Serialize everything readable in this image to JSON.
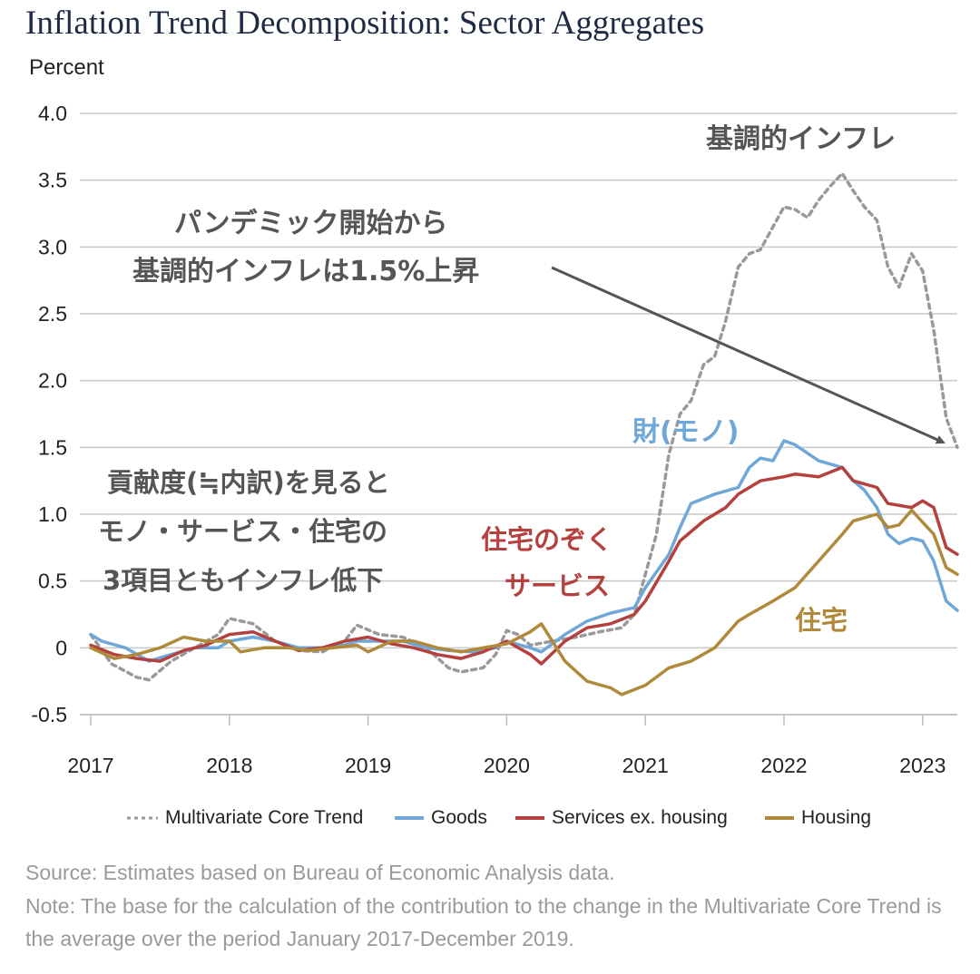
{
  "header": {
    "title": "Inflation Trend Decomposition: Sector Aggregates",
    "ylabel": "Percent"
  },
  "footer": {
    "source": "Source: Estimates based on Bureau of Economic Analysis data.",
    "note": "Note: The base for the calculation of the contribution to the change in the Multivariate Core Trend is the average over the period January 2017-December 2019."
  },
  "chart_data": {
    "type": "line",
    "title": "Inflation Trend Decomposition: Sector Aggregates",
    "ylabel": "Percent",
    "xlabel": "",
    "ylim": [
      -0.5,
      4.0
    ],
    "yticks": [
      "4.0",
      "3.5",
      "3.0",
      "2.5",
      "2.0",
      "1.5",
      "1.0",
      "0.5",
      "0",
      "-0.5"
    ],
    "ytick_values": [
      4.0,
      3.5,
      3.0,
      2.5,
      2.0,
      1.5,
      1.0,
      0.5,
      0,
      -0.5
    ],
    "xlim": [
      2017.0,
      2023.25
    ],
    "xticks": [
      "2017",
      "2018",
      "2019",
      "2020",
      "2021",
      "2022",
      "2023"
    ],
    "xtick_values": [
      2017,
      2018,
      2019,
      2020,
      2021,
      2022,
      2023
    ],
    "grid": "horizontal",
    "legend_position": "bottom",
    "series": [
      {
        "name": "Multivariate Core Trend",
        "color": "#999999",
        "style": "dashed",
        "points": [
          [
            2017.0,
            0.1
          ],
          [
            2017.15,
            -0.12
          ],
          [
            2017.33,
            -0.22
          ],
          [
            2017.42,
            -0.24
          ],
          [
            2017.58,
            -0.1
          ],
          [
            2017.75,
            0.0
          ],
          [
            2017.92,
            0.1
          ],
          [
            2018.0,
            0.22
          ],
          [
            2018.17,
            0.18
          ],
          [
            2018.33,
            0.05
          ],
          [
            2018.5,
            -0.02
          ],
          [
            2018.67,
            -0.03
          ],
          [
            2018.83,
            0.05
          ],
          [
            2018.92,
            0.17
          ],
          [
            2019.08,
            0.1
          ],
          [
            2019.25,
            0.08
          ],
          [
            2019.42,
            0.0
          ],
          [
            2019.58,
            -0.15
          ],
          [
            2019.67,
            -0.18
          ],
          [
            2019.83,
            -0.15
          ],
          [
            2019.92,
            -0.05
          ],
          [
            2020.0,
            0.13
          ],
          [
            2020.08,
            0.1
          ],
          [
            2020.17,
            0.02
          ],
          [
            2020.33,
            0.05
          ],
          [
            2020.5,
            0.08
          ],
          [
            2020.67,
            0.12
          ],
          [
            2020.83,
            0.15
          ],
          [
            2020.92,
            0.25
          ],
          [
            2021.0,
            0.55
          ],
          [
            2021.08,
            0.85
          ],
          [
            2021.17,
            1.45
          ],
          [
            2021.25,
            1.75
          ],
          [
            2021.33,
            1.85
          ],
          [
            2021.42,
            2.12
          ],
          [
            2021.5,
            2.18
          ],
          [
            2021.58,
            2.45
          ],
          [
            2021.67,
            2.85
          ],
          [
            2021.75,
            2.95
          ],
          [
            2021.83,
            2.98
          ],
          [
            2021.92,
            3.15
          ],
          [
            2022.0,
            3.3
          ],
          [
            2022.08,
            3.28
          ],
          [
            2022.17,
            3.22
          ],
          [
            2022.25,
            3.35
          ],
          [
            2022.33,
            3.45
          ],
          [
            2022.42,
            3.55
          ],
          [
            2022.5,
            3.42
          ],
          [
            2022.58,
            3.3
          ],
          [
            2022.67,
            3.2
          ],
          [
            2022.75,
            2.85
          ],
          [
            2022.83,
            2.7
          ],
          [
            2022.92,
            2.95
          ],
          [
            2023.0,
            2.82
          ],
          [
            2023.08,
            2.38
          ],
          [
            2023.17,
            1.72
          ],
          [
            2023.25,
            1.5
          ]
        ]
      },
      {
        "name": "Goods",
        "color": "#6fa8d8",
        "style": "solid",
        "points": [
          [
            2017.0,
            0.1
          ],
          [
            2017.08,
            0.05
          ],
          [
            2017.25,
            0.0
          ],
          [
            2017.42,
            -0.1
          ],
          [
            2017.58,
            -0.05
          ],
          [
            2017.75,
            0.0
          ],
          [
            2017.92,
            0.0
          ],
          [
            2018.0,
            0.05
          ],
          [
            2018.17,
            0.08
          ],
          [
            2018.33,
            0.05
          ],
          [
            2018.5,
            0.0
          ],
          [
            2018.67,
            0.0
          ],
          [
            2018.83,
            0.02
          ],
          [
            2018.92,
            0.05
          ],
          [
            2019.08,
            0.05
          ],
          [
            2019.25,
            0.05
          ],
          [
            2019.42,
            0.0
          ],
          [
            2019.58,
            -0.02
          ],
          [
            2019.75,
            -0.03
          ],
          [
            2019.92,
            0.0
          ],
          [
            2020.0,
            0.05
          ],
          [
            2020.17,
            0.0
          ],
          [
            2020.25,
            -0.03
          ],
          [
            2020.42,
            0.1
          ],
          [
            2020.58,
            0.2
          ],
          [
            2020.75,
            0.26
          ],
          [
            2020.92,
            0.3
          ],
          [
            2021.0,
            0.45
          ],
          [
            2021.17,
            0.7
          ],
          [
            2021.25,
            0.9
          ],
          [
            2021.33,
            1.08
          ],
          [
            2021.5,
            1.15
          ],
          [
            2021.67,
            1.2
          ],
          [
            2021.75,
            1.35
          ],
          [
            2021.83,
            1.42
          ],
          [
            2021.92,
            1.4
          ],
          [
            2022.0,
            1.55
          ],
          [
            2022.08,
            1.52
          ],
          [
            2022.25,
            1.4
          ],
          [
            2022.42,
            1.35
          ],
          [
            2022.5,
            1.25
          ],
          [
            2022.58,
            1.18
          ],
          [
            2022.67,
            1.05
          ],
          [
            2022.75,
            0.85
          ],
          [
            2022.83,
            0.78
          ],
          [
            2022.92,
            0.82
          ],
          [
            2023.0,
            0.8
          ],
          [
            2023.08,
            0.65
          ],
          [
            2023.17,
            0.35
          ],
          [
            2023.25,
            0.28
          ]
        ]
      },
      {
        "name": "Services ex. housing",
        "color": "#b5413e",
        "style": "solid",
        "points": [
          [
            2017.0,
            0.02
          ],
          [
            2017.17,
            -0.05
          ],
          [
            2017.33,
            -0.08
          ],
          [
            2017.5,
            -0.1
          ],
          [
            2017.67,
            -0.02
          ],
          [
            2017.83,
            0.02
          ],
          [
            2018.0,
            0.1
          ],
          [
            2018.17,
            0.12
          ],
          [
            2018.33,
            0.05
          ],
          [
            2018.5,
            -0.02
          ],
          [
            2018.67,
            0.0
          ],
          [
            2018.83,
            0.05
          ],
          [
            2019.0,
            0.08
          ],
          [
            2019.17,
            0.03
          ],
          [
            2019.33,
            0.0
          ],
          [
            2019.5,
            -0.05
          ],
          [
            2019.67,
            -0.08
          ],
          [
            2019.83,
            -0.03
          ],
          [
            2020.0,
            0.05
          ],
          [
            2020.17,
            -0.05
          ],
          [
            2020.25,
            -0.12
          ],
          [
            2020.42,
            0.05
          ],
          [
            2020.58,
            0.15
          ],
          [
            2020.75,
            0.18
          ],
          [
            2020.92,
            0.25
          ],
          [
            2021.0,
            0.35
          ],
          [
            2021.17,
            0.65
          ],
          [
            2021.25,
            0.8
          ],
          [
            2021.42,
            0.95
          ],
          [
            2021.58,
            1.05
          ],
          [
            2021.67,
            1.15
          ],
          [
            2021.83,
            1.25
          ],
          [
            2022.0,
            1.28
          ],
          [
            2022.08,
            1.3
          ],
          [
            2022.25,
            1.28
          ],
          [
            2022.42,
            1.35
          ],
          [
            2022.5,
            1.25
          ],
          [
            2022.67,
            1.2
          ],
          [
            2022.75,
            1.08
          ],
          [
            2022.92,
            1.05
          ],
          [
            2023.0,
            1.1
          ],
          [
            2023.08,
            1.05
          ],
          [
            2023.17,
            0.75
          ],
          [
            2023.25,
            0.7
          ]
        ]
      },
      {
        "name": "Housing",
        "color": "#b08a3a",
        "style": "solid",
        "points": [
          [
            2017.0,
            0.0
          ],
          [
            2017.17,
            -0.08
          ],
          [
            2017.33,
            -0.05
          ],
          [
            2017.5,
            0.0
          ],
          [
            2017.67,
            0.08
          ],
          [
            2017.83,
            0.05
          ],
          [
            2018.0,
            0.05
          ],
          [
            2018.08,
            -0.03
          ],
          [
            2018.25,
            0.0
          ],
          [
            2018.42,
            0.0
          ],
          [
            2018.58,
            -0.02
          ],
          [
            2018.75,
            0.0
          ],
          [
            2018.92,
            0.02
          ],
          [
            2019.0,
            -0.03
          ],
          [
            2019.17,
            0.05
          ],
          [
            2019.33,
            0.05
          ],
          [
            2019.5,
            0.0
          ],
          [
            2019.67,
            -0.03
          ],
          [
            2019.83,
            0.0
          ],
          [
            2020.0,
            0.03
          ],
          [
            2020.17,
            0.12
          ],
          [
            2020.25,
            0.18
          ],
          [
            2020.42,
            -0.1
          ],
          [
            2020.58,
            -0.25
          ],
          [
            2020.75,
            -0.3
          ],
          [
            2020.83,
            -0.35
          ],
          [
            2021.0,
            -0.28
          ],
          [
            2021.17,
            -0.15
          ],
          [
            2021.33,
            -0.1
          ],
          [
            2021.5,
            0.0
          ],
          [
            2021.67,
            0.2
          ],
          [
            2021.75,
            0.25
          ],
          [
            2021.92,
            0.35
          ],
          [
            2022.08,
            0.45
          ],
          [
            2022.25,
            0.65
          ],
          [
            2022.42,
            0.85
          ],
          [
            2022.5,
            0.95
          ],
          [
            2022.67,
            1.0
          ],
          [
            2022.75,
            0.9
          ],
          [
            2022.83,
            0.92
          ],
          [
            2022.92,
            1.03
          ],
          [
            2023.08,
            0.85
          ],
          [
            2023.17,
            0.6
          ],
          [
            2023.25,
            0.55
          ]
        ]
      }
    ],
    "annotations": [
      {
        "text": "基調的インフレ",
        "color": "#555555"
      },
      {
        "text_lines": [
          "パンデミック開始から",
          "基調的インフレは1.5%上昇"
        ],
        "color": "#555555"
      },
      {
        "text": "財(モノ)",
        "color": "#6fa8d8"
      },
      {
        "text_lines": [
          "貢献度(≒内訳)を見ると",
          "モノ・サービス・住宅の",
          "3項目ともインフレ低下"
        ],
        "color": "#555555"
      },
      {
        "text_lines": [
          "住宅のぞく",
          "サービス"
        ],
        "color": "#b5413e"
      },
      {
        "text": "住宅",
        "color": "#b08a3a"
      }
    ]
  }
}
